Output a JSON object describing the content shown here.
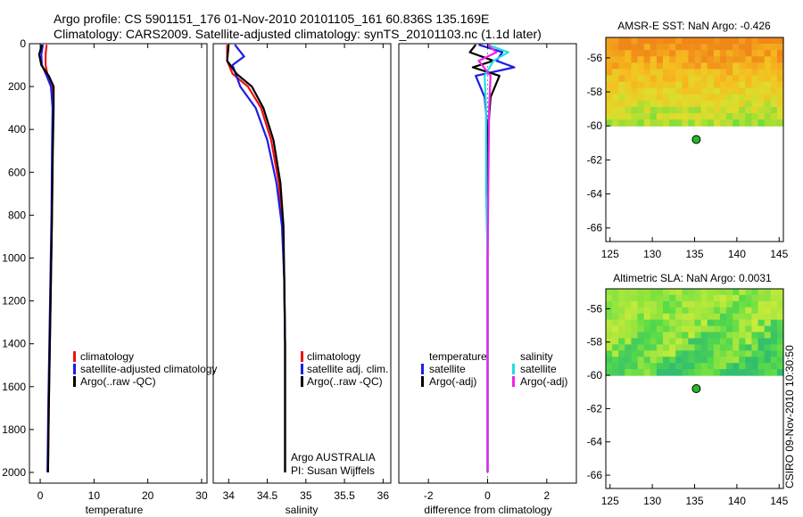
{
  "header": {
    "line1": "Argo profile: CS 5901151_176 01-Nov-2010 20101105_161 60.836S 135.169E",
    "line2": "Climatology: CARS2009. Satellite-adjusted climatology: synTS_20101103.nc (1.1d later)"
  },
  "side_stamp": "CSIRO 09-Nov-2010 10:30:50",
  "colors": {
    "red": "#ee1111",
    "blue": "#1d1de6",
    "black": "#000000",
    "cyan": "#22dde6",
    "magenta": "#ee22ee"
  },
  "chart_data": [
    {
      "type": "line",
      "id": "temperature",
      "xlabel": "temperature",
      "xlim": [
        -2,
        31
      ],
      "ylim": [
        2050,
        0
      ],
      "xticks": [
        0,
        10,
        20,
        30
      ],
      "xtick_labels": [
        "0",
        "10",
        "20",
        "30"
      ],
      "yticks": [
        0,
        200,
        400,
        600,
        800,
        1000,
        1200,
        1400,
        1600,
        1800,
        2000
      ],
      "ytick_labels": [
        "0",
        "200",
        "400",
        "600",
        "800",
        "1000",
        "1200",
        "1400",
        "1600",
        "1800",
        "2000"
      ],
      "legend": [
        "climatology",
        "satellite-adjusted climatology",
        "Argo(..raw -QC)"
      ],
      "series": [
        {
          "name": "climatology",
          "color": "#ee1111",
          "x": [
            1.2,
            1.0,
            1.0,
            1.4,
            2.2,
            2.4,
            2.3,
            2.2,
            2.0,
            1.8,
            1.6,
            1.5,
            1.45
          ],
          "y": [
            5,
            50,
            100,
            150,
            200,
            300,
            500,
            800,
            1100,
            1400,
            1700,
            1900,
            2000
          ]
        },
        {
          "name": "satellite-adjusted climatology",
          "color": "#1d1de6",
          "x": [
            0.5,
            0.2,
            0.3,
            1.2,
            2.0,
            2.3,
            2.2,
            2.1,
            1.9,
            1.7,
            1.5,
            1.4,
            1.35
          ],
          "y": [
            5,
            50,
            100,
            150,
            200,
            300,
            500,
            800,
            1100,
            1400,
            1700,
            1900,
            2000
          ]
        },
        {
          "name": "Argo(..raw -QC)",
          "color": "#000000",
          "x": [
            0.3,
            -0.2,
            0.2,
            1.6,
            2.5,
            2.5,
            2.35,
            2.2,
            2.0,
            1.8,
            1.6,
            1.5,
            1.45
          ],
          "y": [
            5,
            50,
            100,
            150,
            200,
            300,
            500,
            800,
            1100,
            1400,
            1700,
            1900,
            2000
          ]
        }
      ]
    },
    {
      "type": "line",
      "id": "salinity",
      "xlabel": "salinity",
      "xlim": [
        33.8,
        36.1
      ],
      "ylim": [
        2050,
        0
      ],
      "xticks": [
        34,
        34.5,
        35,
        35.5,
        36
      ],
      "xtick_labels": [
        "34",
        "34.5",
        "35",
        "35.5",
        "36"
      ],
      "legend": [
        "climatology",
        "satellite adj. clim.",
        "Argo(..raw -QC)"
      ],
      "annotation": [
        "Argo AUSTRALIA",
        "PI: Susan Wijffels"
      ],
      "series": [
        {
          "name": "climatology",
          "color": "#ee1111",
          "x": [
            33.98,
            33.98,
            34.05,
            34.25,
            34.42,
            34.55,
            34.65,
            34.7,
            34.72,
            34.73,
            34.73,
            34.73
          ],
          "y": [
            5,
            80,
            140,
            200,
            300,
            450,
            650,
            850,
            1100,
            1400,
            1700,
            2000
          ]
        },
        {
          "name": "satellite adj. clim.",
          "color": "#1d1de6",
          "x": [
            34.08,
            34.2,
            34.05,
            34.15,
            34.35,
            34.5,
            34.62,
            34.69,
            34.72,
            34.73,
            34.73,
            34.73
          ],
          "y": [
            5,
            60,
            100,
            200,
            300,
            450,
            650,
            850,
            1100,
            1400,
            1700,
            2000
          ]
        },
        {
          "name": "Argo(..raw -QC)",
          "color": "#000000",
          "x": [
            34.0,
            33.98,
            34.1,
            34.3,
            34.45,
            34.58,
            34.67,
            34.71,
            34.72,
            34.73,
            34.73,
            34.73
          ],
          "y": [
            5,
            80,
            140,
            200,
            300,
            450,
            650,
            850,
            1100,
            1400,
            1700,
            2000
          ]
        }
      ]
    },
    {
      "type": "line",
      "id": "difference",
      "xlabel": "difference from climatology",
      "xlim": [
        -3,
        3
      ],
      "ylim": [
        2050,
        0
      ],
      "xticks": [
        -2,
        0,
        2
      ],
      "xtick_labels": [
        "-2",
        "0",
        "2"
      ],
      "legend_groups": [
        {
          "title": "temperature",
          "entries": [
            "satellite",
            "Argo(-adj)"
          ]
        },
        {
          "title": "salinity",
          "entries": [
            "satellite",
            "Argo(-adj)"
          ]
        }
      ],
      "series": [
        {
          "name": "temperature satellite",
          "color": "#1d1de6",
          "x": [
            -0.3,
            0.5,
            0.3,
            0.9,
            -0.4,
            -0.1,
            0.0,
            0.0,
            0.0,
            0.0,
            0.0
          ],
          "y": [
            5,
            40,
            80,
            110,
            150,
            250,
            400,
            700,
            1000,
            1500,
            2000
          ]
        },
        {
          "name": "temperature Argo(-adj)",
          "color": "#000000",
          "x": [
            -0.4,
            -0.6,
            0.2,
            -0.5,
            0.4,
            0.1,
            0.02,
            0.0,
            0.0,
            0.0,
            0.0
          ],
          "y": [
            5,
            40,
            80,
            110,
            150,
            250,
            400,
            700,
            1000,
            1500,
            2000
          ]
        },
        {
          "name": "salinity satellite",
          "color": "#22dde6",
          "x": [
            0.0,
            0.7,
            0.2,
            -0.1,
            -0.05,
            -0.05,
            0.0,
            0.0,
            0.0
          ],
          "y": [
            5,
            40,
            80,
            150,
            300,
            700,
            1000,
            1500,
            2000
          ]
        },
        {
          "name": "salinity Argo(-adj)",
          "color": "#ee22ee",
          "x": [
            0.0,
            0.3,
            -0.3,
            0.1,
            0.05,
            0.02,
            0.0,
            0.0,
            0.0
          ],
          "y": [
            5,
            40,
            80,
            150,
            300,
            700,
            1000,
            1500,
            2000
          ]
        }
      ]
    },
    {
      "type": "heatmap",
      "id": "sst_map",
      "title": "AMSR-E SST: NaN Argo: -0.426",
      "xlim": [
        124.5,
        145.5
      ],
      "ylim": [
        -66.8,
        -54.8
      ],
      "xticks": [
        125,
        130,
        135,
        140,
        145
      ],
      "xtick_labels": [
        "125",
        "130",
        "135",
        "140",
        "145"
      ],
      "yticks": [
        -56,
        -58,
        -60,
        -62,
        -64,
        -66
      ],
      "ytick_labels": [
        "-56",
        "-58",
        "-60",
        "-62",
        "-64",
        "-66"
      ],
      "data_extent": {
        "lon": [
          124.5,
          145.5
        ],
        "lat": [
          -60.0,
          -54.8
        ]
      },
      "marker": {
        "lon": 135.2,
        "lat": -60.8
      }
    },
    {
      "type": "heatmap",
      "id": "sla_map",
      "title": "Altimetric SLA: NaN Argo: 0.0031",
      "xlim": [
        124.5,
        145.5
      ],
      "ylim": [
        -66.8,
        -54.8
      ],
      "xticks": [
        125,
        130,
        135,
        140,
        145
      ],
      "xtick_labels": [
        "125",
        "130",
        "135",
        "140",
        "145"
      ],
      "yticks": [
        -56,
        -58,
        -60,
        -62,
        -64,
        -66
      ],
      "ytick_labels": [
        "-56",
        "-58",
        "-60",
        "-62",
        "-64",
        "-66"
      ],
      "data_extent": {
        "lon": [
          124.5,
          145.5
        ],
        "lat": [
          -60.0,
          -54.8
        ]
      },
      "marker": {
        "lon": 135.2,
        "lat": -60.8
      }
    }
  ]
}
